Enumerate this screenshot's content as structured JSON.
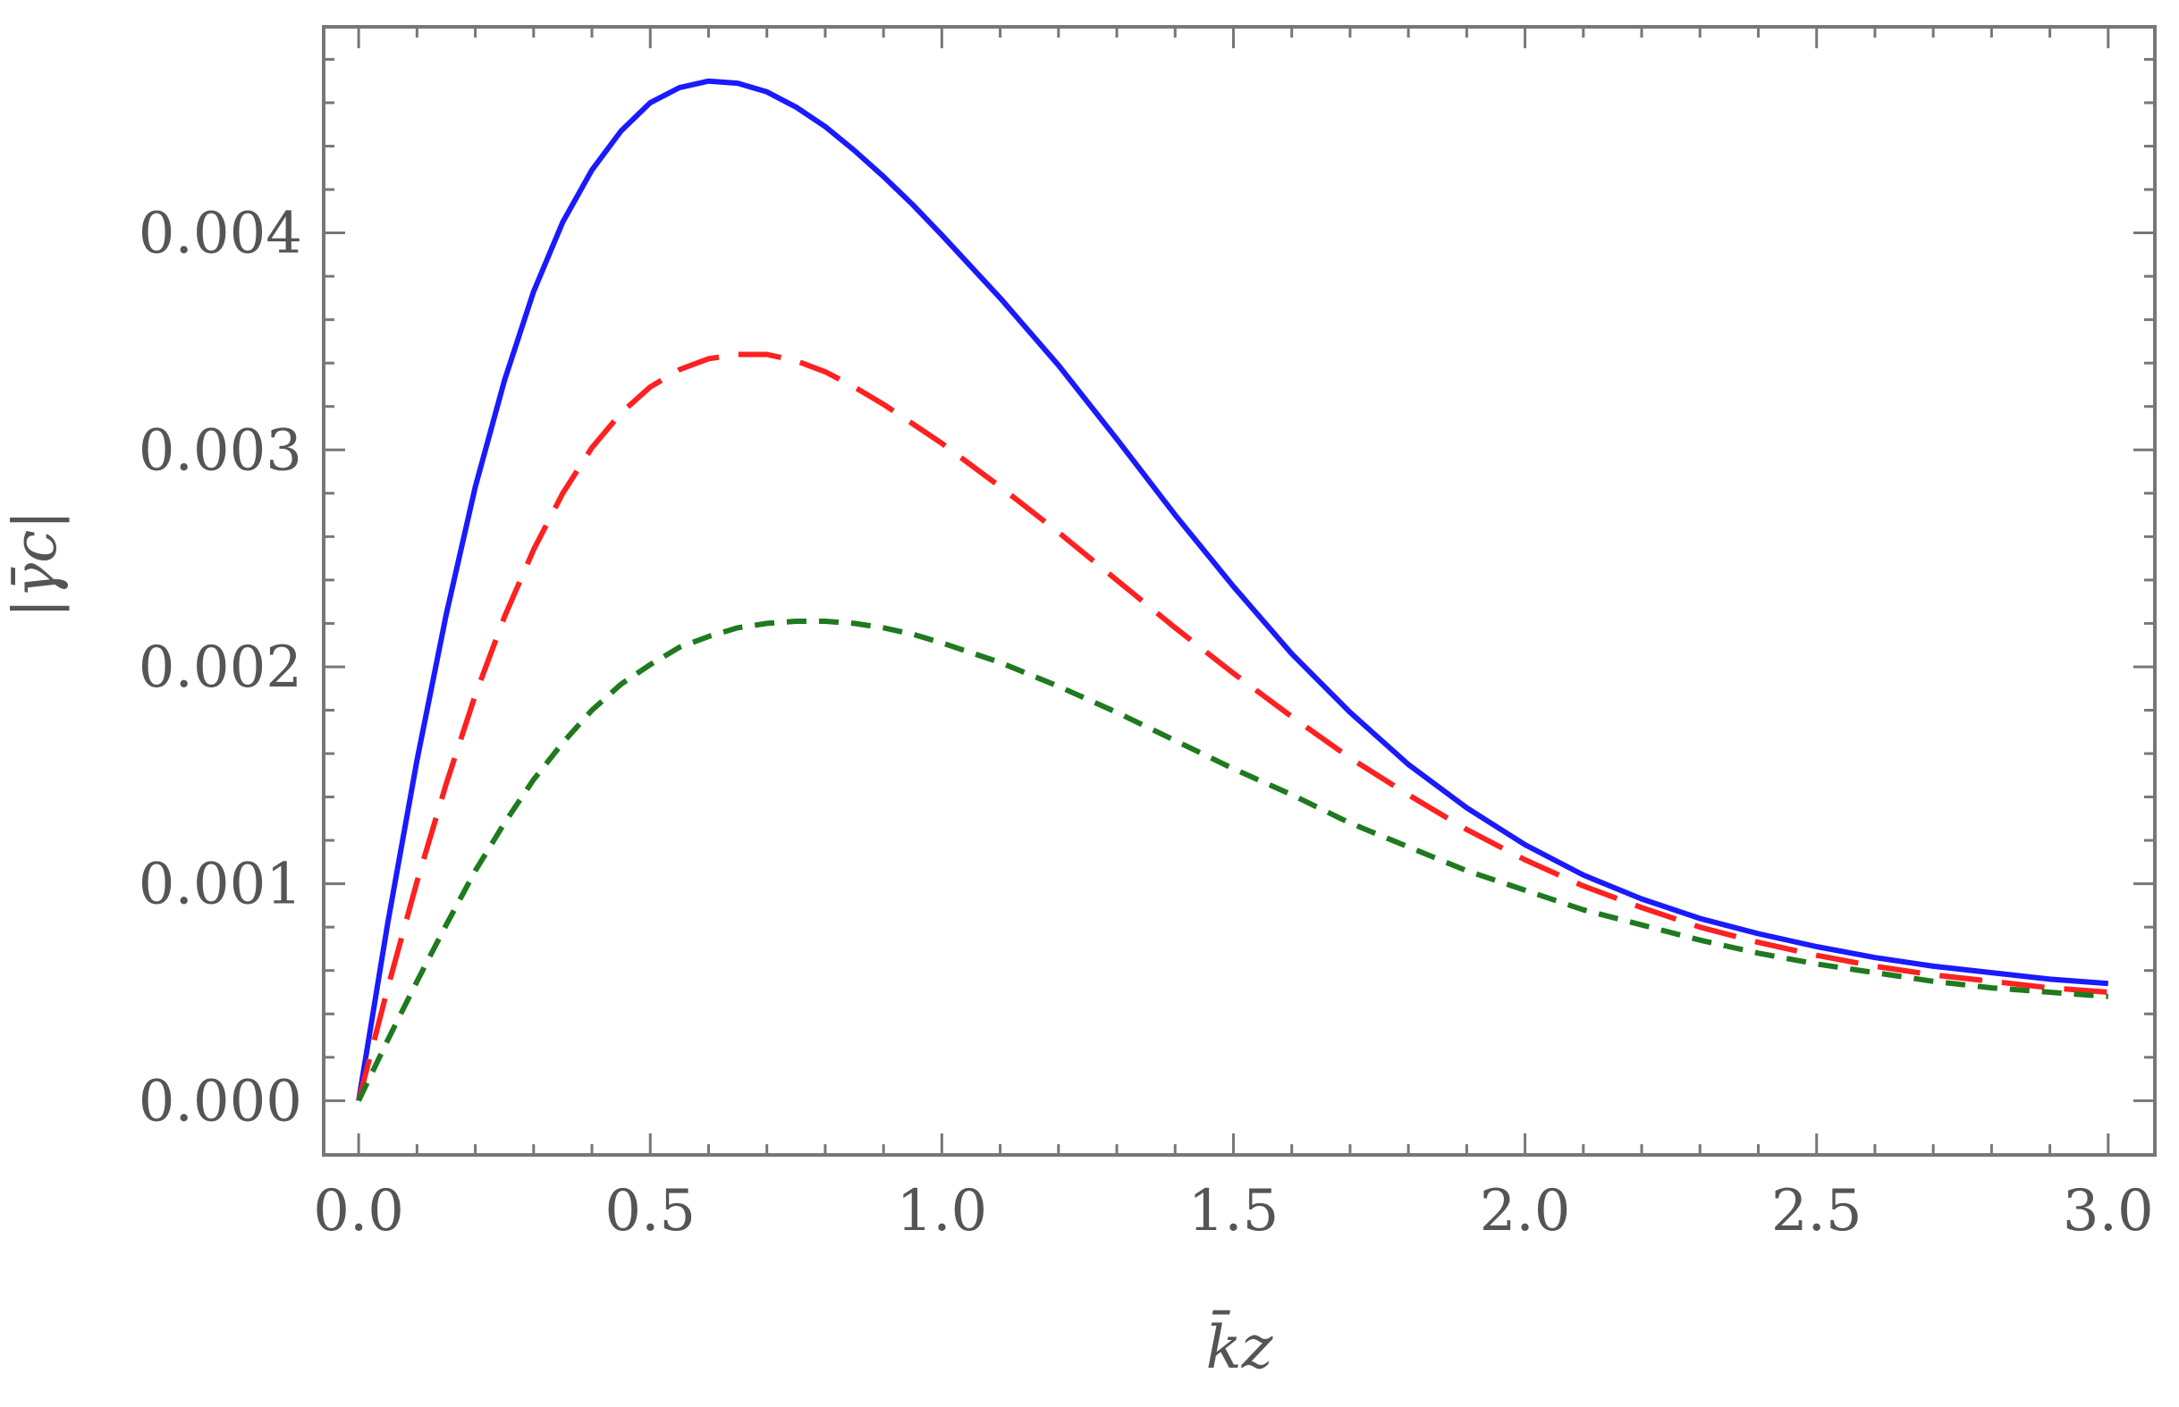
{
  "chart_data": {
    "type": "line",
    "title": "",
    "xlabel": "k̄z",
    "ylabel": "|γ̄c|",
    "xlim": [
      -0.06,
      3.08
    ],
    "ylim": [
      -0.00025,
      0.00495
    ],
    "xticks": [
      0.0,
      0.5,
      1.0,
      1.5,
      2.0,
      2.5,
      3.0
    ],
    "xtick_labels": [
      "0.0",
      "0.5",
      "1.0",
      "1.5",
      "2.0",
      "2.5",
      "3.0"
    ],
    "yticks": [
      0.0,
      0.001,
      0.002,
      0.003,
      0.004
    ],
    "ytick_labels": [
      "0.000",
      "0.001",
      "0.002",
      "0.003",
      "0.004"
    ],
    "grid": false,
    "legend": "none",
    "series": [
      {
        "color": "#1a1aff",
        "dash": "solid",
        "x": [
          0.0,
          0.05,
          0.1,
          0.15,
          0.2,
          0.25,
          0.3,
          0.35,
          0.4,
          0.45,
          0.5,
          0.55,
          0.6,
          0.65,
          0.7,
          0.75,
          0.8,
          0.85,
          0.9,
          0.95,
          1.0,
          1.1,
          1.2,
          1.3,
          1.4,
          1.5,
          1.6,
          1.7,
          1.8,
          1.9,
          2.0,
          2.1,
          2.2,
          2.3,
          2.4,
          2.5,
          2.6,
          2.7,
          2.8,
          2.9,
          3.0
        ],
        "y": [
          0.0,
          0.00082,
          0.00157,
          0.00224,
          0.00283,
          0.00332,
          0.00373,
          0.00405,
          0.00429,
          0.00447,
          0.0046,
          0.00467,
          0.0047,
          0.00469,
          0.00465,
          0.00458,
          0.00449,
          0.00438,
          0.00426,
          0.00413,
          0.00399,
          0.0037,
          0.00339,
          0.00305,
          0.0027,
          0.00237,
          0.00206,
          0.00179,
          0.00155,
          0.00135,
          0.00118,
          0.00104,
          0.00093,
          0.00084,
          0.00077,
          0.00071,
          0.00066,
          0.00062,
          0.00059,
          0.00056,
          0.00054
        ]
      },
      {
        "color": "#ff2020",
        "dash": "long-dash",
        "x": [
          0.0,
          0.05,
          0.1,
          0.15,
          0.2,
          0.25,
          0.3,
          0.35,
          0.4,
          0.45,
          0.5,
          0.55,
          0.6,
          0.65,
          0.7,
          0.75,
          0.8,
          0.85,
          0.9,
          0.95,
          1.0,
          1.1,
          1.2,
          1.3,
          1.4,
          1.5,
          1.6,
          1.7,
          1.8,
          1.9,
          2.0,
          2.1,
          2.2,
          2.3,
          2.4,
          2.5,
          2.6,
          2.7,
          2.8,
          2.9,
          3.0
        ],
        "y": [
          0.0,
          0.00052,
          0.00101,
          0.00146,
          0.00187,
          0.00223,
          0.00254,
          0.0028,
          0.00301,
          0.00317,
          0.00329,
          0.00337,
          0.00342,
          0.00344,
          0.00344,
          0.00341,
          0.00336,
          0.00329,
          0.00321,
          0.00312,
          0.00303,
          0.00283,
          0.00262,
          0.0024,
          0.00218,
          0.00197,
          0.00177,
          0.00158,
          0.00141,
          0.00125,
          0.00111,
          0.00099,
          0.00089,
          0.0008,
          0.00073,
          0.00067,
          0.00062,
          0.00058,
          0.00055,
          0.00052,
          0.0005
        ]
      },
      {
        "color": "#1f7a1f",
        "dash": "short-dash",
        "x": [
          0.0,
          0.05,
          0.1,
          0.15,
          0.2,
          0.25,
          0.3,
          0.35,
          0.4,
          0.45,
          0.5,
          0.55,
          0.6,
          0.65,
          0.7,
          0.75,
          0.8,
          0.85,
          0.9,
          0.95,
          1.0,
          1.1,
          1.2,
          1.3,
          1.4,
          1.5,
          1.6,
          1.7,
          1.8,
          1.9,
          2.0,
          2.1,
          2.2,
          2.3,
          2.4,
          2.5,
          2.6,
          2.7,
          2.8,
          2.9,
          3.0
        ],
        "y": [
          0.0,
          0.00028,
          0.00055,
          0.00081,
          0.00106,
          0.00128,
          0.00148,
          0.00165,
          0.0018,
          0.00192,
          0.00201,
          0.00209,
          0.00214,
          0.00218,
          0.0022,
          0.00221,
          0.00221,
          0.0022,
          0.00218,
          0.00215,
          0.00211,
          0.00202,
          0.00191,
          0.00179,
          0.00166,
          0.00153,
          0.00141,
          0.00128,
          0.00117,
          0.00106,
          0.00097,
          0.00088,
          0.00081,
          0.00074,
          0.00068,
          0.00063,
          0.00059,
          0.00055,
          0.00052,
          0.0005,
          0.00048
        ]
      }
    ]
  }
}
